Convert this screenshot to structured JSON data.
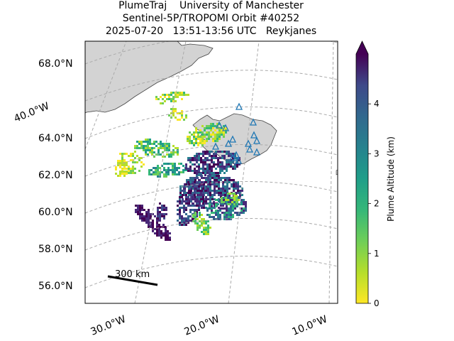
{
  "header": {
    "line1": "PlumeTraj    University of Manchester",
    "line2": "Sentinel-5P/TROPOMI Orbit #40252",
    "line3": "2025-07-20   13:51-13:56 UTC   Reykjanes"
  },
  "map": {
    "lat_labels": [
      "68.0°N",
      "64.0°N",
      "62.0°N",
      "60.0°N",
      "58.0°N",
      "56.0°N"
    ],
    "lon_labels": [
      "40.0°W",
      "30.0°W",
      "20.0°W",
      "10.0°W"
    ],
    "scale_bar_label": "300 km",
    "land_color": "#d3d3d3",
    "volcano_marker_color": "#1f77b4"
  },
  "colorbar": {
    "label": "Plume Altitude (km)",
    "ticks": [
      "0",
      "1",
      "2",
      "3",
      "4"
    ],
    "max_value": 5,
    "colormap": "viridis_r",
    "extend": "max"
  }
}
